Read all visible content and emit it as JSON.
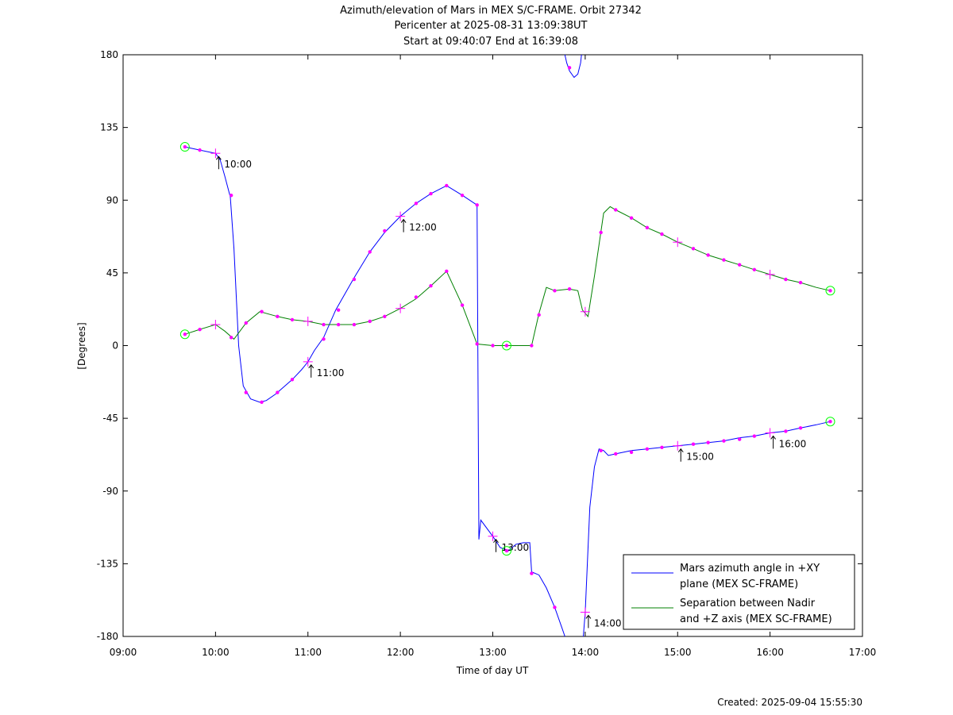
{
  "chart_data": {
    "type": "line",
    "title": [
      "Azimuth/elevation of Mars in MEX S/C-FRAME.  Orbit 27342",
      "Pericenter at 2025-08-31 13:09:38UT",
      "Start at 09:40:07 End at 16:39:08"
    ],
    "xlabel": "Time of day UT",
    "ylabel": "[Degrees]",
    "xlim": [
      9,
      17
    ],
    "ylim": [
      -180,
      180
    ],
    "xticks": [
      9,
      10,
      11,
      12,
      13,
      14,
      15,
      16,
      17
    ],
    "xtick_labels": [
      "09:00",
      "10:00",
      "11:00",
      "12:00",
      "13:00",
      "14:00",
      "15:00",
      "16:00",
      "17:00"
    ],
    "yticks": [
      180,
      135,
      90,
      45,
      0,
      -45,
      -90,
      -135,
      -180
    ],
    "ytick_labels": [
      "180",
      "135",
      "90",
      "45",
      "0",
      "-45",
      "-90",
      "-135",
      "-180"
    ],
    "grid": false,
    "legend_position": "bottom-right",
    "series": [
      {
        "name": "Mars azimuth angle in +XY plane (MEX SC-FRAME)",
        "legend_lines": [
          "Mars azimuth angle in +XY",
          "plane (MEX SC-FRAME)"
        ],
        "color": "#0000ff",
        "segments": [
          [
            [
              9.669,
              123
            ],
            [
              9.83,
              121
            ],
            [
              10.0,
              119
            ],
            [
              10.05,
              115
            ],
            [
              10.1,
              105
            ],
            [
              10.16,
              92
            ],
            [
              10.2,
              60
            ],
            [
              10.25,
              0
            ],
            [
              10.3,
              -25
            ],
            [
              10.38,
              -33
            ],
            [
              10.48,
              -35
            ],
            [
              10.55,
              -34
            ],
            [
              10.65,
              -30
            ],
            [
              10.83,
              -21
            ],
            [
              10.93,
              -15
            ],
            [
              11.0,
              -10
            ],
            [
              11.07,
              -3
            ],
            [
              11.17,
              5
            ],
            [
              11.3,
              22
            ],
            [
              11.5,
              42
            ],
            [
              11.67,
              58
            ],
            [
              11.83,
              70
            ],
            [
              12.0,
              80
            ],
            [
              12.17,
              88
            ],
            [
              12.33,
              94
            ],
            [
              12.5,
              99
            ],
            [
              12.67,
              93
            ],
            [
              12.83,
              87
            ],
            [
              12.85,
              -120
            ],
            [
              12.87,
              -108
            ],
            [
              13.0,
              -118
            ],
            [
              13.08,
              -125
            ],
            [
              13.17,
              -127
            ],
            [
              13.25,
              -123
            ],
            [
              13.33,
              -122
            ],
            [
              13.4,
              -122
            ],
            [
              13.42,
              -140
            ],
            [
              13.5,
              -142
            ],
            [
              13.58,
              -150
            ],
            [
              13.67,
              -162
            ],
            [
              13.75,
              -175
            ],
            [
              13.78,
              -180
            ]
          ],
          [
            [
              13.78,
              180
            ],
            [
              13.8,
              175
            ],
            [
              13.83,
              170
            ],
            [
              13.88,
              166
            ],
            [
              13.92,
              168
            ],
            [
              13.95,
              175
            ],
            [
              13.96,
              180
            ]
          ],
          [
            [
              13.98,
              -180
            ],
            [
              14.0,
              -165
            ],
            [
              14.05,
              -100
            ],
            [
              14.1,
              -75
            ],
            [
              14.15,
              -64
            ],
            [
              14.2,
              -65
            ],
            [
              14.25,
              -68
            ],
            [
              14.33,
              -67
            ],
            [
              14.5,
              -65
            ],
            [
              14.67,
              -64
            ],
            [
              14.83,
              -63
            ],
            [
              15.0,
              -62
            ],
            [
              15.17,
              -61
            ],
            [
              15.33,
              -60
            ],
            [
              15.5,
              -59
            ],
            [
              15.67,
              -57
            ],
            [
              15.83,
              -56
            ],
            [
              16.0,
              -54
            ],
            [
              16.17,
              -53
            ],
            [
              16.33,
              -51
            ],
            [
              16.5,
              -49
            ],
            [
              16.652,
              -47
            ]
          ]
        ],
        "markers": [
          [
            9.83,
            121
          ],
          [
            10.17,
            93
          ],
          [
            10.33,
            -29
          ],
          [
            10.5,
            -35
          ],
          [
            10.67,
            -29
          ],
          [
            10.83,
            -21
          ],
          [
            11.17,
            4
          ],
          [
            11.33,
            22
          ],
          [
            11.5,
            41
          ],
          [
            11.67,
            58
          ],
          [
            11.83,
            71
          ],
          [
            12.17,
            88
          ],
          [
            12.33,
            94
          ],
          [
            12.5,
            99
          ],
          [
            12.67,
            93
          ],
          [
            12.83,
            87
          ],
          [
            13.42,
            -141
          ],
          [
            13.67,
            -162
          ],
          [
            13.83,
            172
          ],
          [
            14.17,
            -65
          ],
          [
            14.33,
            -67
          ],
          [
            14.5,
            -66
          ],
          [
            14.67,
            -64
          ],
          [
            14.83,
            -63
          ],
          [
            15.17,
            -61
          ],
          [
            15.33,
            -60
          ],
          [
            15.5,
            -59
          ],
          [
            15.67,
            -58
          ],
          [
            15.83,
            -56
          ],
          [
            16.17,
            -53
          ],
          [
            16.33,
            -51
          ]
        ]
      },
      {
        "name": "Separation between Nadir and +Z axis (MEX SC-FRAME)",
        "legend_lines": [
          "Separation between Nadir",
          "and +Z axis (MEX SC-FRAME)"
        ],
        "color": "#008000",
        "segments": [
          [
            [
              9.669,
              7
            ],
            [
              9.83,
              10
            ],
            [
              10.0,
              13
            ],
            [
              10.1,
              9
            ],
            [
              10.2,
              4
            ],
            [
              10.33,
              14
            ],
            [
              10.48,
              21
            ],
            [
              10.67,
              18
            ],
            [
              10.83,
              16
            ],
            [
              11.0,
              15
            ],
            [
              11.17,
              13
            ],
            [
              11.33,
              13
            ],
            [
              11.5,
              13
            ],
            [
              11.67,
              15
            ],
            [
              11.83,
              18
            ],
            [
              12.0,
              23
            ],
            [
              12.17,
              29
            ],
            [
              12.33,
              37
            ],
            [
              12.5,
              46
            ],
            [
              12.67,
              25
            ],
            [
              12.83,
              1
            ],
            [
              13.0,
              0
            ],
            [
              13.17,
              0
            ],
            [
              13.42,
              0
            ],
            [
              13.5,
              20
            ],
            [
              13.58,
              36
            ],
            [
              13.67,
              34
            ],
            [
              13.83,
              35
            ],
            [
              13.92,
              34
            ],
            [
              13.97,
              22
            ],
            [
              14.03,
              18
            ],
            [
              14.1,
              43
            ],
            [
              14.2,
              82
            ],
            [
              14.27,
              86
            ],
            [
              14.33,
              84
            ],
            [
              14.5,
              79
            ],
            [
              14.67,
              73
            ],
            [
              14.83,
              69
            ],
            [
              15.0,
              64
            ],
            [
              15.17,
              60
            ],
            [
              15.33,
              56
            ],
            [
              15.5,
              53
            ],
            [
              15.67,
              50
            ],
            [
              15.83,
              47
            ],
            [
              16.0,
              44
            ],
            [
              16.17,
              41
            ],
            [
              16.33,
              39
            ],
            [
              16.5,
              36
            ],
            [
              16.652,
              34
            ]
          ]
        ],
        "markers": [
          [
            9.83,
            10
          ],
          [
            10.17,
            5
          ],
          [
            10.33,
            14
          ],
          [
            10.5,
            21
          ],
          [
            10.67,
            18
          ],
          [
            10.83,
            16
          ],
          [
            11.17,
            13
          ],
          [
            11.33,
            13
          ],
          [
            11.5,
            13
          ],
          [
            11.67,
            15
          ],
          [
            11.83,
            18
          ],
          [
            12.17,
            30
          ],
          [
            12.33,
            37
          ],
          [
            12.5,
            46
          ],
          [
            12.67,
            25
          ],
          [
            12.83,
            1
          ],
          [
            13.0,
            0
          ],
          [
            13.42,
            0
          ],
          [
            13.5,
            19
          ],
          [
            13.67,
            34
          ],
          [
            13.83,
            35
          ],
          [
            14.17,
            70
          ],
          [
            14.33,
            84
          ],
          [
            14.5,
            79
          ],
          [
            14.67,
            73
          ],
          [
            14.83,
            69
          ],
          [
            15.17,
            60
          ],
          [
            15.33,
            56
          ],
          [
            15.5,
            53
          ],
          [
            15.67,
            50
          ],
          [
            15.83,
            47
          ],
          [
            16.17,
            41
          ],
          [
            16.33,
            39
          ]
        ]
      }
    ],
    "hour_markers": [
      {
        "label": "10:00",
        "x": 10.0,
        "y": 119
      },
      {
        "label": "11:00",
        "x": 11.0,
        "y": -10
      },
      {
        "label": "12:00",
        "x": 12.0,
        "y": 80
      },
      {
        "label": "13:00",
        "x": 13.0,
        "y": -118
      },
      {
        "label": "14:00",
        "x": 14.0,
        "y": -165
      },
      {
        "label": "15:00",
        "x": 15.0,
        "y": -62
      },
      {
        "label": "16:00",
        "x": 16.0,
        "y": -54
      }
    ],
    "extra_crosses": [
      [
        10.0,
        13
      ],
      [
        11.0,
        15
      ],
      [
        12.0,
        23
      ],
      [
        15.0,
        64
      ],
      [
        16.0,
        44
      ],
      [
        14.0,
        21
      ]
    ],
    "endpoint_circles": [
      [
        9.669,
        123
      ],
      [
        9.669,
        7
      ],
      [
        16.652,
        -47
      ],
      [
        16.652,
        34
      ],
      [
        13.15,
        0
      ],
      [
        13.15,
        -127
      ]
    ],
    "marker_color": "#ff00ff",
    "endpoint_color": "#00ff00",
    "footer": "Created: 2025-09-04 15:55:30"
  }
}
